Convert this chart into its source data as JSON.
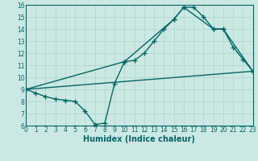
{
  "xlabel": "Humidex (Indice chaleur)",
  "ylabel": "",
  "bg_color": "#cce8e4",
  "line_color": "#006868",
  "grid_color": "#b0d8d0",
  "xlim": [
    0,
    23
  ],
  "ylim": [
    6,
    16
  ],
  "xticks": [
    0,
    1,
    2,
    3,
    4,
    5,
    6,
    7,
    8,
    9,
    10,
    11,
    12,
    13,
    14,
    15,
    16,
    17,
    18,
    19,
    20,
    21,
    22,
    23
  ],
  "yticks": [
    6,
    7,
    8,
    9,
    10,
    11,
    12,
    13,
    14,
    15,
    16
  ],
  "line1_x": [
    0,
    1,
    2,
    3,
    4,
    5,
    6,
    7,
    8,
    9,
    10,
    11,
    12,
    13,
    14,
    15,
    16,
    17,
    18,
    19,
    20,
    21,
    22,
    23
  ],
  "line1_y": [
    9.0,
    8.7,
    8.4,
    8.2,
    8.1,
    8.0,
    7.2,
    6.1,
    6.2,
    9.5,
    11.3,
    11.4,
    12.0,
    13.0,
    14.0,
    14.8,
    15.8,
    15.8,
    15.0,
    14.0,
    14.0,
    12.5,
    11.5,
    10.5
  ],
  "line2_x": [
    0,
    23
  ],
  "line2_y": [
    9.0,
    10.5
  ],
  "line3_x": [
    0,
    10,
    15,
    16,
    19,
    20,
    23
  ],
  "line3_y": [
    9.0,
    11.3,
    14.8,
    15.8,
    14.0,
    14.0,
    10.5
  ],
  "marker_size": 4,
  "line_width": 1.0,
  "tick_fontsize": 5.5,
  "xlabel_fontsize": 7
}
